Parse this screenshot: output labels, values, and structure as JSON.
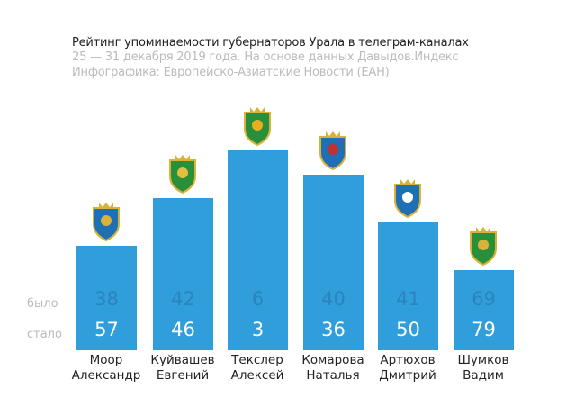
{
  "chart_data": {
    "type": "bar",
    "title": "Рейтинг упоминаемости губернаторов Урала в телеграм-каналах",
    "subtitle": [
      "25 — 31 декабря 2019 года. На основе данных Давыдов.Индекс",
      "Инфографика: Европейско-Азиатские Новости (ЕАН)"
    ],
    "row_labels": {
      "was": "было",
      "now": "стало"
    },
    "categories": [
      {
        "surname": "Моор",
        "name": "Александр"
      },
      {
        "surname": "Куйвашев",
        "name": "Евгений"
      },
      {
        "surname": "Текслер",
        "name": "Алексей"
      },
      {
        "surname": "Комарова",
        "name": "Наталья"
      },
      {
        "surname": "Артюхов",
        "name": "Дмитрий"
      },
      {
        "surname": "Шумков",
        "name": "Вадим"
      }
    ],
    "series": [
      {
        "name": "было",
        "values": [
          38,
          42,
          6,
          40,
          41,
          69
        ]
      },
      {
        "name": "стало",
        "values": [
          57,
          46,
          3,
          36,
          50,
          79
        ]
      }
    ],
    "bar_color": "#2f9edb",
    "note": "bar height reflects rank (lower rank = taller)"
  }
}
